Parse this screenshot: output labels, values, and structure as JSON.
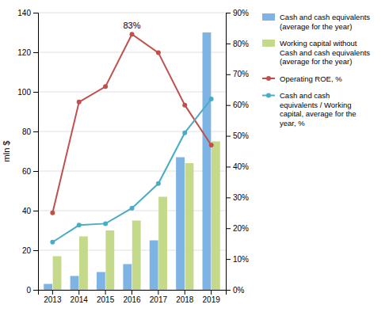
{
  "chart_data": {
    "type": "bar",
    "categories": [
      "2013",
      "2014",
      "2015",
      "2016",
      "2017",
      "2018",
      "2019"
    ],
    "series": [
      {
        "name": "Cash and cash equivalents\n(average for the year)",
        "type": "bar",
        "color": "#7eb4e3",
        "values": [
          3,
          7,
          9,
          13,
          25,
          67,
          130
        ]
      },
      {
        "name": "Working capital without\nCash and cash equivalents\n(average for the year)",
        "type": "bar",
        "color": "#c4d98a",
        "values": [
          17,
          27,
          30,
          35,
          47,
          64,
          75
        ]
      },
      {
        "name": "Operating ROE, %",
        "type": "line",
        "marker": "circle",
        "axis": "y2",
        "color": "#c0504d",
        "values": [
          25,
          61,
          66,
          83,
          77,
          60,
          47
        ]
      },
      {
        "name": "Cash and cash\nequivalents / Working\ncapital, average for the\nyear, %",
        "type": "line",
        "marker": "circle",
        "axis": "y2",
        "color": "#4bacc6",
        "values": [
          15.5,
          21,
          21.5,
          26.5,
          34.5,
          51,
          62
        ]
      }
    ],
    "ylabel": "mln $",
    "ylim": [
      0,
      140
    ],
    "yticks": [
      0,
      20,
      40,
      60,
      80,
      100,
      120,
      140
    ],
    "y2lim": [
      0,
      90
    ],
    "y2ticks": [
      {
        "value": 0,
        "label": "0%"
      },
      {
        "value": 10,
        "label": "10%"
      },
      {
        "value": 20,
        "label": "20%"
      },
      {
        "value": 30,
        "label": "30%"
      },
      {
        "value": 40,
        "label": "40%"
      },
      {
        "value": 50,
        "label": "50%"
      },
      {
        "value": 60,
        "label": "60%"
      },
      {
        "value": 70,
        "label": "70%"
      },
      {
        "value": 80,
        "label": "80%"
      },
      {
        "value": 90,
        "label": "90%"
      }
    ],
    "grid": true,
    "legend": "right",
    "annotations": [
      {
        "text": "83%",
        "x": "2016",
        "y": 83,
        "axis": "y2"
      }
    ]
  }
}
